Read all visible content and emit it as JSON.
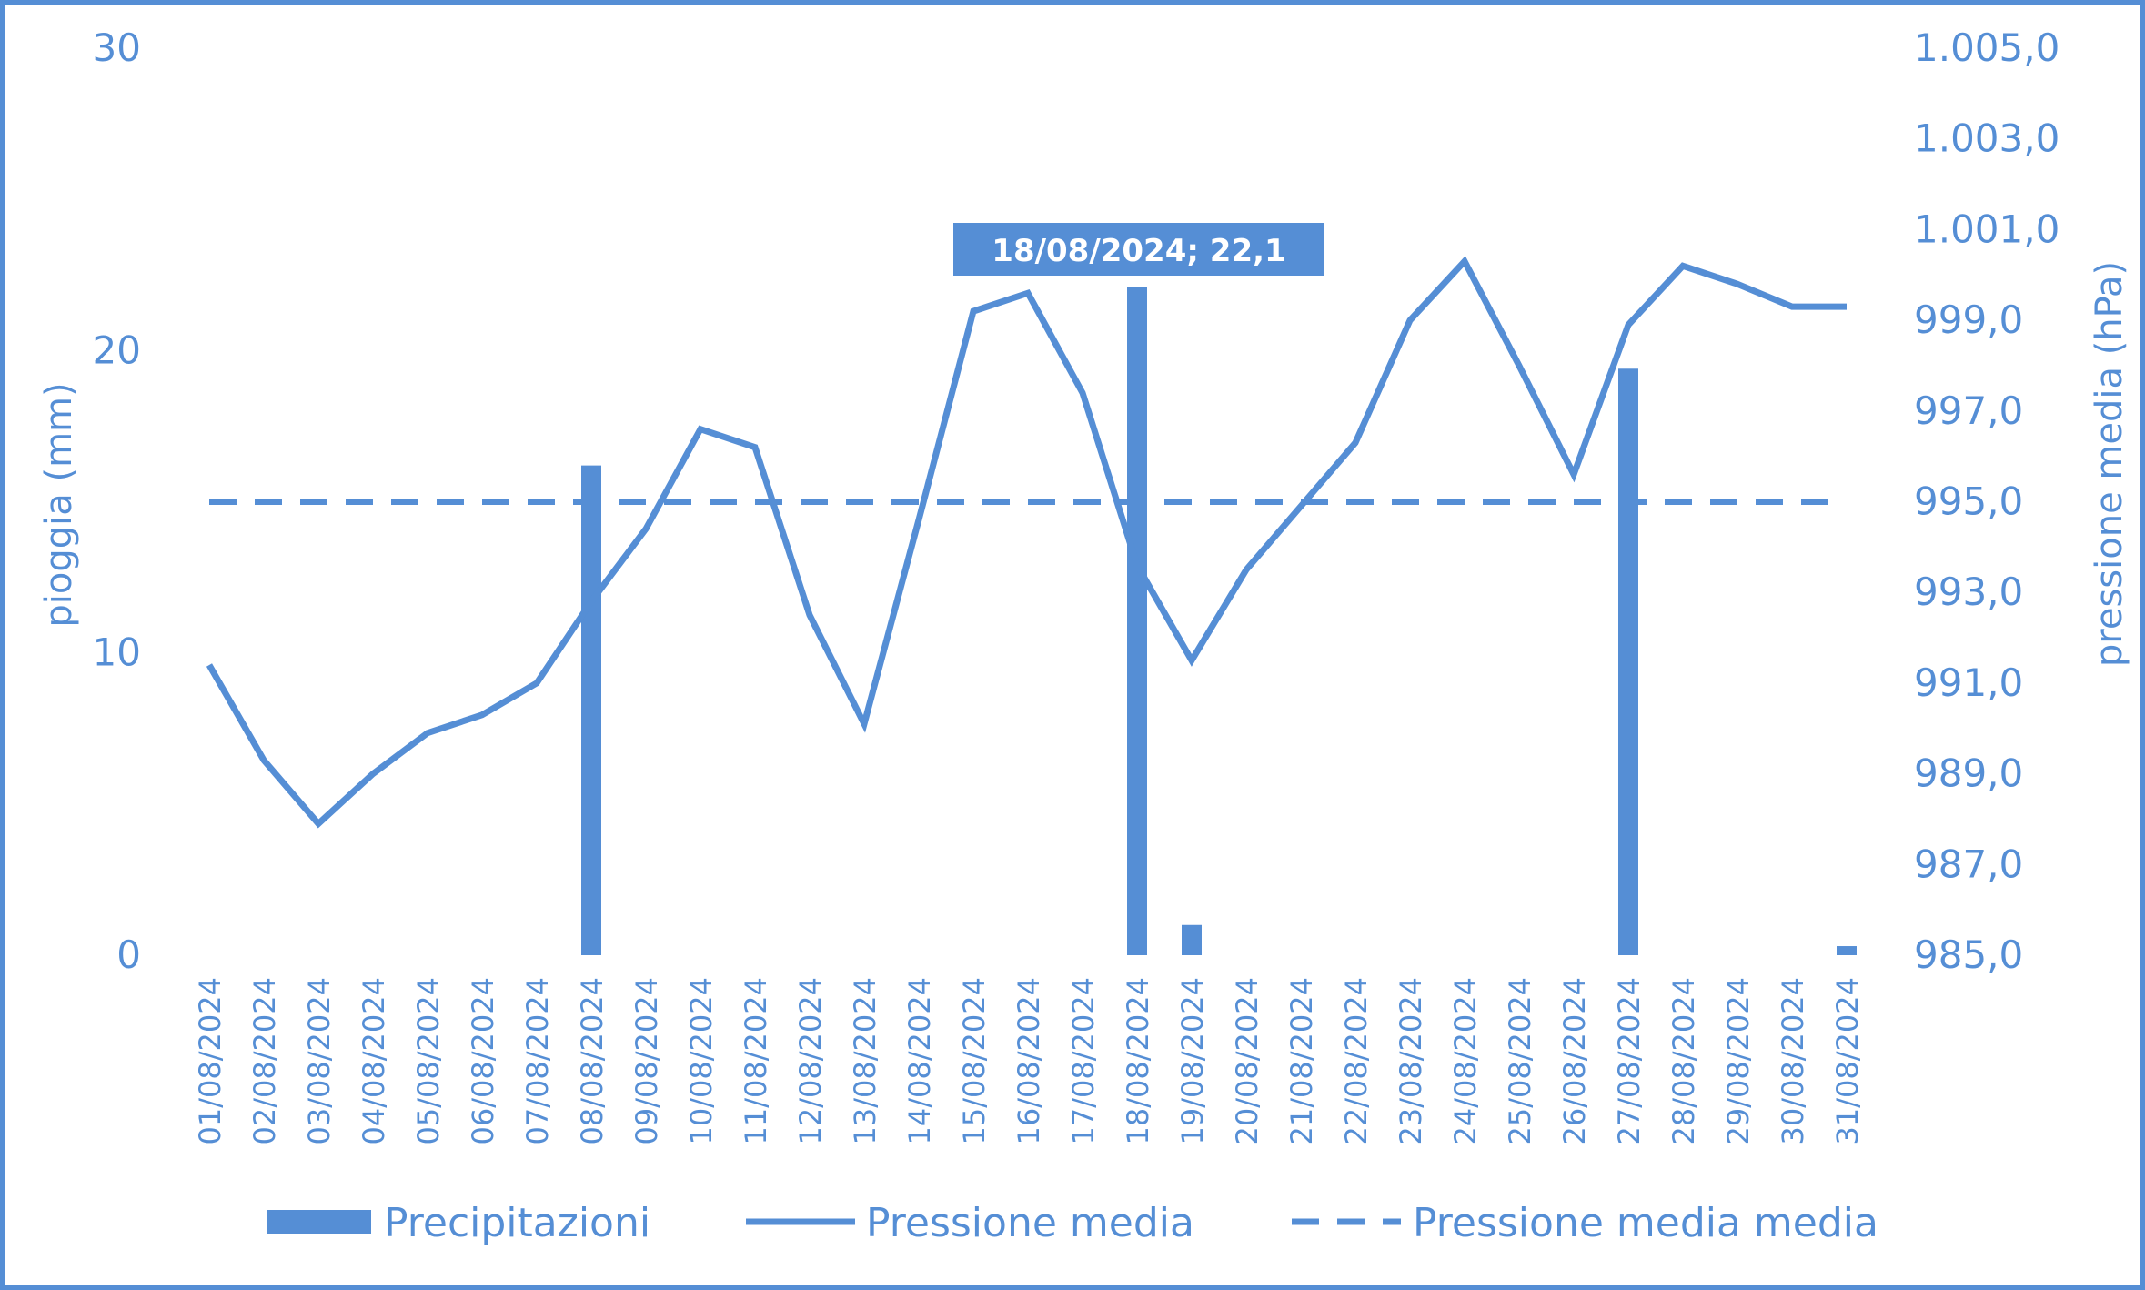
{
  "chart_data": {
    "type": "bar+line",
    "categories": [
      "01/08/2024",
      "02/08/2024",
      "03/08/2024",
      "04/08/2024",
      "05/08/2024",
      "06/08/2024",
      "07/08/2024",
      "08/08/2024",
      "09/08/2024",
      "10/08/2024",
      "11/08/2024",
      "12/08/2024",
      "13/08/2024",
      "14/08/2024",
      "15/08/2024",
      "16/08/2024",
      "17/08/2024",
      "18/08/2024",
      "19/08/2024",
      "20/08/2024",
      "21/08/2024",
      "22/08/2024",
      "23/08/2024",
      "24/08/2024",
      "25/08/2024",
      "26/08/2024",
      "27/08/2024",
      "28/08/2024",
      "29/08/2024",
      "30/08/2024",
      "31/08/2024"
    ],
    "y_left": {
      "label": "pioggia (mm)",
      "min": 0,
      "max": 30,
      "ticks": [
        "0",
        "10",
        "20",
        "30"
      ]
    },
    "y_right": {
      "label": "pressione media (hPa)",
      "min": 985,
      "max": 1005,
      "ticks": [
        "985,0",
        "987,0",
        "989,0",
        "991,0",
        "993,0",
        "995,0",
        "997,0",
        "999,0",
        "1.001,0",
        "1.003,0",
        "1.005,0"
      ]
    },
    "series": [
      {
        "name": "Precipitazioni",
        "type": "bar",
        "axis": "left",
        "values": [
          0,
          0,
          0,
          0,
          0,
          0,
          0,
          16.2,
          0,
          0,
          0,
          0,
          0,
          0,
          0,
          0,
          0,
          22.1,
          1.0,
          0,
          0,
          0,
          0,
          0,
          0,
          0,
          19.4,
          0,
          0,
          0,
          0.3
        ]
      },
      {
        "name": "Pressione media",
        "type": "line",
        "axis": "right",
        "values": [
          991.4,
          989.3,
          987.9,
          989.0,
          989.9,
          990.3,
          991.0,
          992.8,
          994.4,
          996.6,
          996.2,
          992.5,
          990.1,
          994.6,
          999.2,
          999.6,
          997.4,
          993.6,
          991.5,
          993.5,
          994.9,
          996.3,
          999.0,
          1000.3,
          998.0,
          995.6,
          998.9,
          1000.2,
          999.8,
          999.3,
          999.3
        ]
      },
      {
        "name": "Pressione media media",
        "type": "line",
        "style": "dashed",
        "axis": "right",
        "values": [
          995,
          995,
          995,
          995,
          995,
          995,
          995,
          995,
          995,
          995,
          995,
          995,
          995,
          995,
          995,
          995,
          995,
          995,
          995,
          995,
          995,
          995,
          995,
          995,
          995,
          995,
          995,
          995,
          995,
          995,
          995
        ]
      }
    ],
    "annotations": [
      {
        "category_index": 17,
        "text": "18/08/2024; 22,1"
      }
    ],
    "legend_position": "bottom",
    "grid": false,
    "colors": {
      "primary": "#558ed5",
      "callout_bg": "#558ed5",
      "callout_text": "#ffffff",
      "border": "#558ed5"
    }
  }
}
